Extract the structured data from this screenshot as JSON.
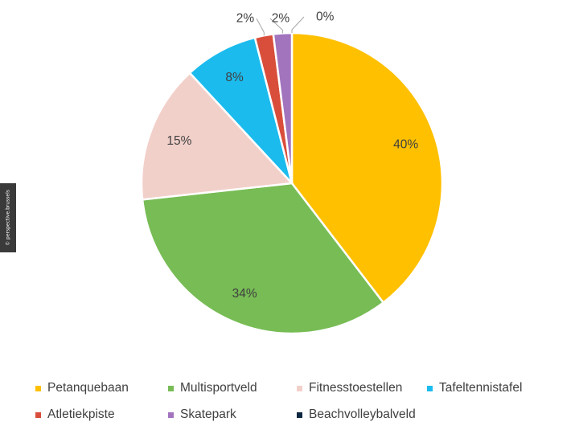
{
  "chart_data": {
    "type": "pie",
    "categories": [
      "Petanquebaan",
      "Multisportveld",
      "Fitnesstoestellen",
      "Tafeltennistafel",
      "Atletiekpiste",
      "Skatepark",
      "Beachvolleybalveld"
    ],
    "values": [
      40,
      34,
      15,
      8,
      2,
      2,
      0
    ],
    "labels": [
      "40%",
      "34%",
      "15%",
      "8%",
      "2%",
      "2%",
      "0%"
    ],
    "colors": [
      "#FFC000",
      "#77BC55",
      "#F2D0CA",
      "#1BBBEE",
      "#D94E3B",
      "#A274BE",
      "#0E2841"
    ],
    "legend_position": "bottom"
  },
  "credit": "© perspective.brussels"
}
